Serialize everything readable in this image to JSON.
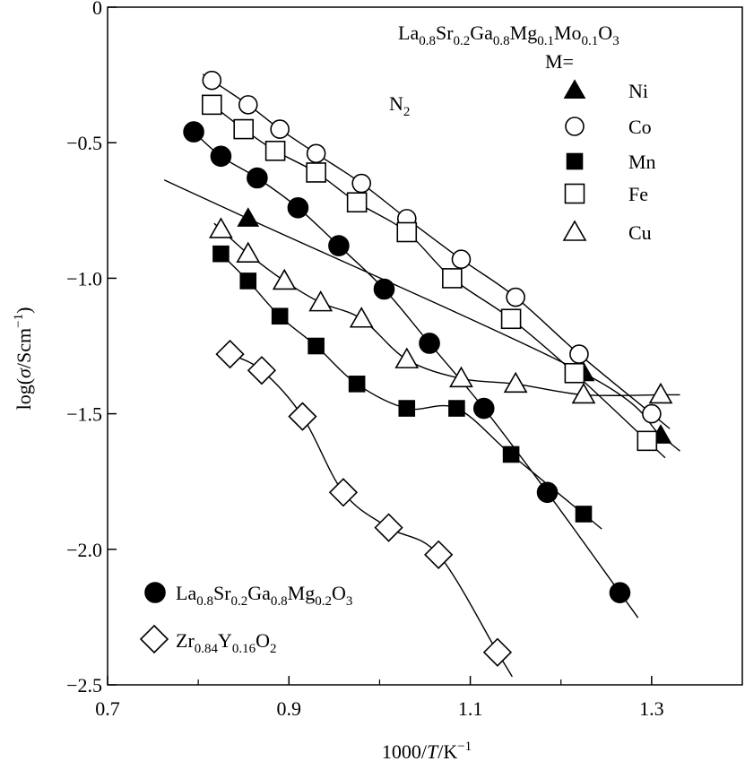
{
  "chart_data": {
    "type": "scatter",
    "title": "",
    "xlabel": "1000/T/K⁻¹",
    "ylabel": "log(σ/Scm⁻¹)",
    "xlim": [
      0.7,
      1.4
    ],
    "ylim": [
      -2.5,
      0
    ],
    "x_ticks": [
      "0.7",
      "0.9",
      "1.1",
      "1.3"
    ],
    "y_ticks": [
      "0",
      "−0.5",
      "−1.0",
      "−1.5",
      "−2.0",
      "−2.5"
    ],
    "grid": false,
    "annotation_atmosphere": "N2",
    "group_legend_formula": "La0.8Sr0.2Ga0.8Mg0.1Mo0.1O3",
    "group_legend_label": "M=",
    "series": [
      {
        "name": "Ni",
        "marker": "filled-triangle",
        "x": [
          0.855,
          1.225,
          1.31
        ],
        "y": [
          -0.78,
          -1.35,
          -1.58
        ]
      },
      {
        "name": "Co",
        "marker": "open-circle",
        "x": [
          0.815,
          0.855,
          0.89,
          0.93,
          0.98,
          1.03,
          1.09,
          1.15,
          1.22,
          1.3
        ],
        "y": [
          -0.27,
          -0.36,
          -0.45,
          -0.54,
          -0.65,
          -0.78,
          -0.93,
          -1.07,
          -1.28,
          -1.5
        ]
      },
      {
        "name": "Mn",
        "marker": "filled-square",
        "x": [
          0.825,
          0.855,
          0.89,
          0.93,
          0.975,
          1.03,
          1.085,
          1.145,
          1.225
        ],
        "y": [
          -0.91,
          -1.01,
          -1.14,
          -1.25,
          -1.39,
          -1.48,
          -1.48,
          -1.65,
          -1.87
        ]
      },
      {
        "name": "Fe",
        "marker": "open-square",
        "x": [
          0.815,
          0.85,
          0.885,
          0.93,
          0.975,
          1.03,
          1.08,
          1.145,
          1.215,
          1.295
        ],
        "y": [
          -0.36,
          -0.45,
          -0.53,
          -0.61,
          -0.72,
          -0.83,
          -1.0,
          -1.15,
          -1.35,
          -1.6
        ]
      },
      {
        "name": "Cu",
        "marker": "open-triangle",
        "x": [
          0.825,
          0.855,
          0.895,
          0.935,
          0.98,
          1.03,
          1.09,
          1.15,
          1.225,
          1.31
        ],
        "y": [
          -0.82,
          -0.91,
          -1.01,
          -1.09,
          -1.15,
          -1.3,
          -1.37,
          -1.39,
          -1.43,
          -1.43
        ]
      },
      {
        "name": "La0.8Sr0.2Ga0.8Mg0.2O3",
        "marker": "filled-circle",
        "x": [
          0.795,
          0.825,
          0.865,
          0.91,
          0.955,
          1.005,
          1.055,
          1.115,
          1.185,
          1.265
        ],
        "y": [
          -0.46,
          -0.55,
          -0.63,
          -0.74,
          -0.88,
          -1.04,
          -1.24,
          -1.48,
          -1.79,
          -2.16
        ]
      },
      {
        "name": "Zr0.84Y0.16O2",
        "marker": "open-diamond",
        "x": [
          0.835,
          0.87,
          0.915,
          0.96,
          1.01,
          1.065,
          1.13
        ],
        "y": [
          -1.28,
          -1.34,
          -1.51,
          -1.79,
          -1.92,
          -2.02,
          -2.38
        ]
      }
    ]
  }
}
